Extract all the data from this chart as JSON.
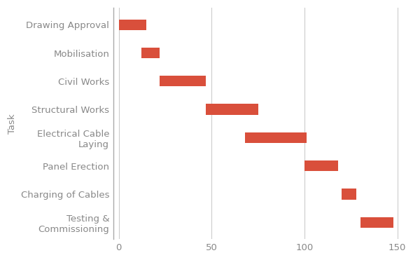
{
  "tasks": [
    "Drawing Approval",
    "Mobilisation",
    "Civil Works",
    "Structural Works",
    "Electrical Cable\nLaying",
    "Panel Erection",
    "Charging of Cables",
    "Testing &\nCommissioning"
  ],
  "starts": [
    0,
    12,
    22,
    47,
    68,
    100,
    120,
    130
  ],
  "durations": [
    15,
    10,
    25,
    28,
    33,
    18,
    8,
    18
  ],
  "bar_color": "#d94f3b",
  "bar_height": 0.38,
  "ylabel": "Task",
  "xlim": [
    -3,
    158
  ],
  "xticks": [
    0,
    50,
    100,
    150
  ],
  "grid_color": "#cccccc",
  "tick_label_color": "#888888",
  "axis_label_color": "#888888",
  "background_color": "#ffffff",
  "label_fontsize": 9.5
}
